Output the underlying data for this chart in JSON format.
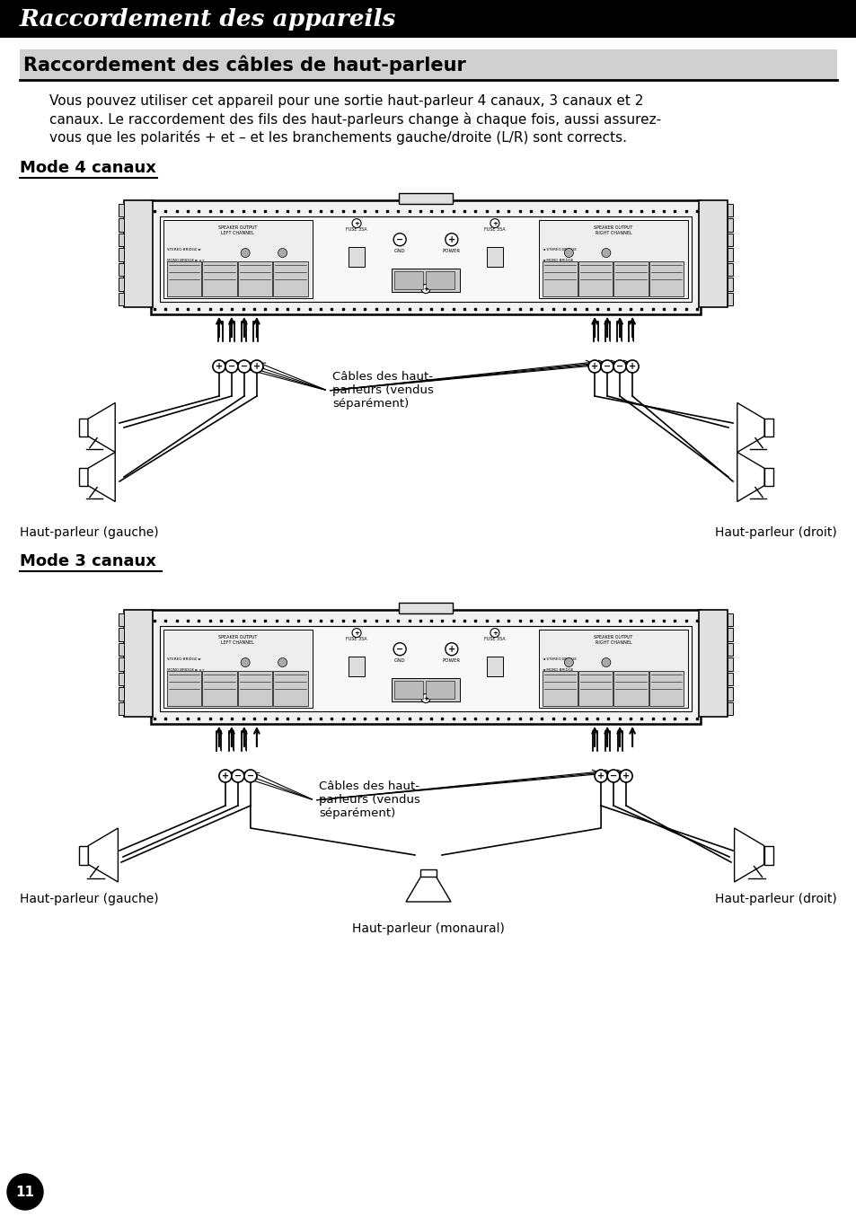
{
  "page_title": "Raccordement des appareils",
  "section_title": "Raccordement des câbles de haut-parleur",
  "body_line1": "Vous pouvez utiliser cet appareil pour une sortie haut-parleur 4 canaux, 3 canaux et 2",
  "body_line2": "canaux. Le raccordement des fils des haut-parleurs change à chaque fois, aussi assurez-",
  "body_line3": "vous que les polarités + et – et les branchements gauche/droite (L/R) sont corrects.",
  "mode4_title": "Mode 4 canaux",
  "mode3_title": "Mode 3 canaux",
  "label_cables_haut": "Câbles des haut-\nparleurs (vendus\nséparément)",
  "label_gauche_4": "Haut-parleur (gauche)",
  "label_droit_4": "Haut-parleur (droit)",
  "label_gauche_3": "Haut-parleur (gauche)",
  "label_droit_3": "Haut-parleur (droit)",
  "label_monaural": "Haut-parleur (monaural)",
  "page_number": "11",
  "bg_color": "#ffffff",
  "title_bg": "#000000",
  "title_fg": "#ffffff",
  "section_bg": "#d0d0d0"
}
